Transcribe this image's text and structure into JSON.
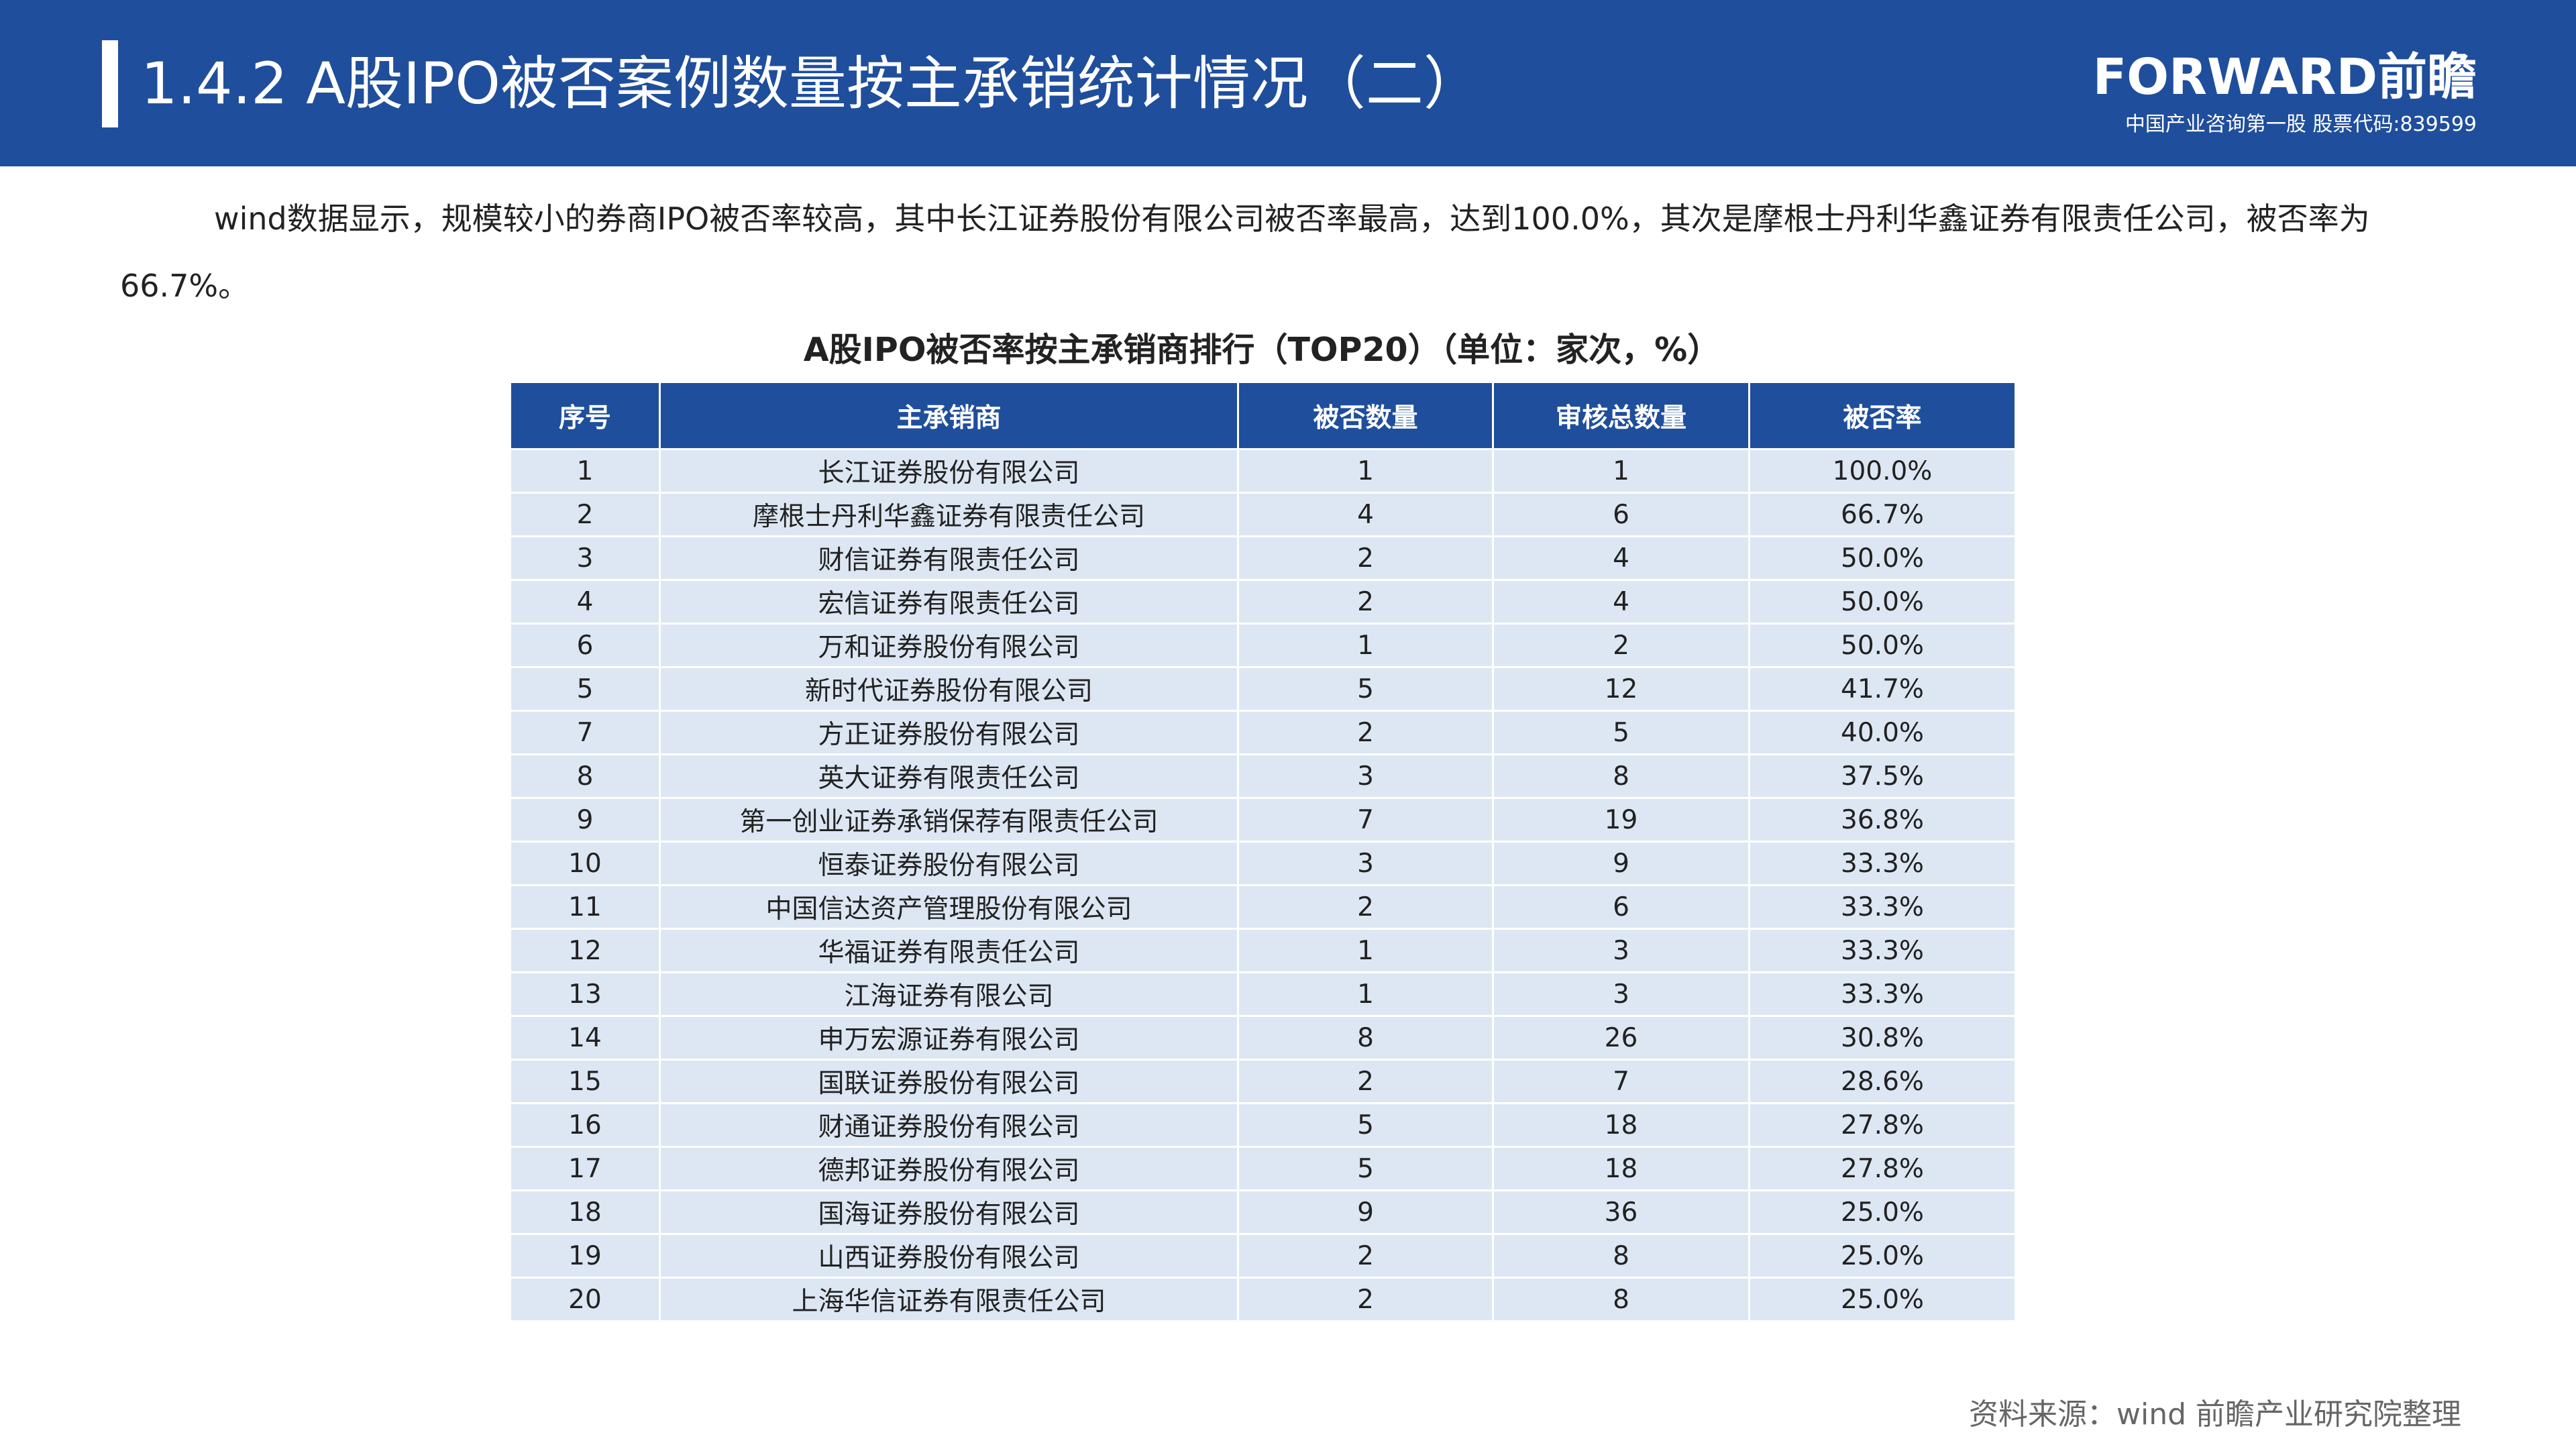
{
  "header": {
    "title": "1.4.2 A股IPO被否案例数量按主承销统计情况（二）",
    "logo": "FORWARD前瞻",
    "logo_sub": "中国产业咨询第一股 股票代码:839599"
  },
  "paragraph": "wind数据显示，规模较小的券商IPO被否率较高，其中长江证券股份有限公司被否率最高，达到100.0%，其次是摩根士丹利华鑫证券有限责任公司，被否率为66.7%。",
  "table": {
    "title": "A股IPO被否率按主承销商排行（TOP20）（单位：家次，%）",
    "headers": [
      "序号",
      "主承销商",
      "被否数量",
      "审核总数量",
      "被否率"
    ],
    "rows": [
      [
        "1",
        "长江证券股份有限公司",
        "1",
        "1",
        "100.0%"
      ],
      [
        "2",
        "摩根士丹利华鑫证券有限责任公司",
        "4",
        "6",
        "66.7%"
      ],
      [
        "3",
        "财信证券有限责任公司",
        "2",
        "4",
        "50.0%"
      ],
      [
        "4",
        "宏信证券有限责任公司",
        "2",
        "4",
        "50.0%"
      ],
      [
        "6",
        "万和证券股份有限公司",
        "1",
        "2",
        "50.0%"
      ],
      [
        "5",
        "新时代证券股份有限公司",
        "5",
        "12",
        "41.7%"
      ],
      [
        "7",
        "方正证券股份有限公司",
        "2",
        "5",
        "40.0%"
      ],
      [
        "8",
        "英大证券有限责任公司",
        "3",
        "8",
        "37.5%"
      ],
      [
        "9",
        "第一创业证券承销保荐有限责任公司",
        "7",
        "19",
        "36.8%"
      ],
      [
        "10",
        "恒泰证券股份有限公司",
        "3",
        "9",
        "33.3%"
      ],
      [
        "11",
        "中国信达资产管理股份有限公司",
        "2",
        "6",
        "33.3%"
      ],
      [
        "12",
        "华福证券有限责任公司",
        "1",
        "3",
        "33.3%"
      ],
      [
        "13",
        "江海证券有限公司",
        "1",
        "3",
        "33.3%"
      ],
      [
        "14",
        "申万宏源证券有限公司",
        "8",
        "26",
        "30.8%"
      ],
      [
        "15",
        "国联证券股份有限公司",
        "2",
        "7",
        "28.6%"
      ],
      [
        "16",
        "财通证券股份有限公司",
        "5",
        "18",
        "27.8%"
      ],
      [
        "17",
        "德邦证券股份有限公司",
        "5",
        "18",
        "27.8%"
      ],
      [
        "18",
        "国海证券股份有限公司",
        "9",
        "36",
        "25.0%"
      ],
      [
        "19",
        "山西证券股份有限公司",
        "2",
        "8",
        "25.0%"
      ],
      [
        "20",
        "上海华信证券有限责任公司",
        "2",
        "8",
        "25.0%"
      ]
    ]
  },
  "source": "资料来源：wind 前瞻产业研究院整理"
}
